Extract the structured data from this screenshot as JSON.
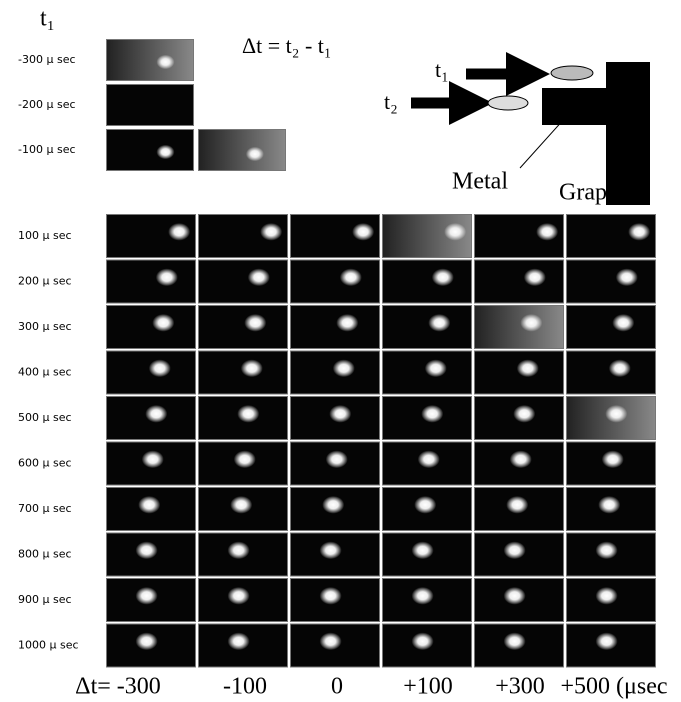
{
  "header": {
    "t1_label": "t₁",
    "formula": "Δt = t₂ - t₁"
  },
  "pre_rows": [
    "-300 μ sec",
    "-200 μ sec",
    "-100 μ sec"
  ],
  "diagram": {
    "t1": "t₁",
    "t2": "t₂",
    "metal": "Metal",
    "graphite": "Graphite"
  },
  "rows": [
    "100 μ sec",
    "200 μ sec",
    "300 μ sec",
    "400 μ sec",
    "500 μ sec",
    "600 μ sec",
    "700 μ sec",
    "800 μ sec",
    "900 μ sec",
    "1000 μ sec"
  ],
  "columns": [
    "Δt= -300",
    "-100",
    "0",
    "+100",
    "+300",
    "+500 (μsec"
  ]
}
